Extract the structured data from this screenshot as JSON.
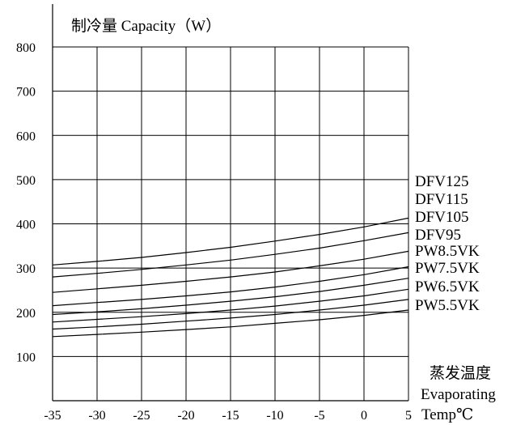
{
  "chart_data": {
    "type": "line",
    "ylabel": "制冷量 Capacity（W）",
    "xlabel_lines": [
      "蒸发温度",
      "Evaporating",
      "Temp℃"
    ],
    "xlim": [
      -35,
      5
    ],
    "ylim": [
      0,
      800
    ],
    "x_ticks": [
      -35,
      -30,
      -25,
      -20,
      -15,
      -10,
      -5,
      0,
      5
    ],
    "x_tick_labels": [
      "-35",
      "-30",
      "-25",
      "-20",
      "-15",
      "-10",
      "-5",
      "0",
      "5"
    ],
    "y_ticks": [
      100,
      200,
      300,
      400,
      500,
      600,
      700,
      800
    ],
    "y_tick_labels": [
      "100",
      "200",
      "300",
      "400",
      "500",
      "600",
      "700",
      "800"
    ],
    "grid": true,
    "x": [
      -35,
      -30,
      -25,
      -20,
      -15,
      -10,
      -5,
      0,
      5
    ],
    "series": [
      {
        "name": "DFV125",
        "values": [
          307,
          315,
          324,
          335,
          347,
          361,
          376,
          393,
          413
        ]
      },
      {
        "name": "DFV115",
        "values": [
          280,
          288,
          297,
          307,
          318,
          331,
          345,
          362,
          380
        ]
      },
      {
        "name": "DFV105",
        "values": [
          245,
          253,
          261,
          270,
          280,
          291,
          305,
          320,
          338
        ]
      },
      {
        "name": "DFV95",
        "values": [
          215,
          222,
          229,
          237,
          246,
          257,
          270,
          285,
          303
        ]
      },
      {
        "name": "PW8.5VK",
        "values": [
          195,
          201,
          208,
          216,
          225,
          235,
          247,
          261,
          277
        ]
      },
      {
        "name": "PW7.5VK",
        "values": [
          178,
          184,
          190,
          197,
          205,
          214,
          225,
          237,
          252
        ]
      },
      {
        "name": "PW6.5VK",
        "values": [
          162,
          167,
          173,
          180,
          187,
          195,
          205,
          216,
          229
        ]
      },
      {
        "name": "PW5.5VK",
        "values": [
          145,
          150,
          155,
          161,
          167,
          175,
          183,
          193,
          205
        ]
      }
    ]
  }
}
